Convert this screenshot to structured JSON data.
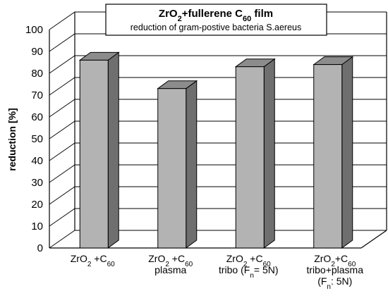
{
  "chart_data": {
    "type": "bar",
    "title_main": {
      "pre": "ZrO",
      "sub1": "2",
      "mid": "+fullerene C",
      "sub2": "60",
      "post": " film"
    },
    "title_sub": "reduction of gram-postive bacteria S.aereus",
    "ylabel": "reduction [%]",
    "ylim": [
      0,
      100
    ],
    "yticks": [
      0,
      10,
      20,
      30,
      40,
      50,
      60,
      70,
      80,
      90,
      100
    ],
    "grid": true,
    "categories": [
      {
        "lines": [
          [
            {
              "t": "ZrO"
            },
            {
              "t": "2",
              "sub": true
            },
            {
              "t": " +C"
            },
            {
              "t": "60",
              "sub": true
            }
          ]
        ]
      },
      {
        "lines": [
          [
            {
              "t": "ZrO"
            },
            {
              "t": "2",
              "sub": true
            },
            {
              "t": " +C"
            },
            {
              "t": "60",
              "sub": true
            }
          ],
          [
            {
              "t": "plasma"
            }
          ]
        ]
      },
      {
        "lines": [
          [
            {
              "t": "ZrO"
            },
            {
              "t": "2",
              "sub": true
            },
            {
              "t": " +C"
            },
            {
              "t": "60",
              "sub": true
            }
          ],
          [
            {
              "t": "tribo (F"
            },
            {
              "t": "n",
              "sub": true
            },
            {
              "t": "= 5N)"
            }
          ]
        ]
      },
      {
        "lines": [
          [
            {
              "t": "ZrO"
            },
            {
              "t": "2",
              "sub": true
            },
            {
              "t": "+C"
            },
            {
              "t": "60",
              "sub": true
            }
          ],
          [
            {
              "t": "tribo+plasma"
            }
          ],
          [
            {
              "t": "(F"
            },
            {
              "t": "n",
              "sub": true
            },
            {
              "t": ": 5N)"
            }
          ]
        ]
      }
    ],
    "values": [
      86,
      73,
      83,
      84
    ],
    "colors": {
      "front": "#b3b3b3",
      "side": "#6f6f6f",
      "top": "#8c8c8c"
    }
  }
}
